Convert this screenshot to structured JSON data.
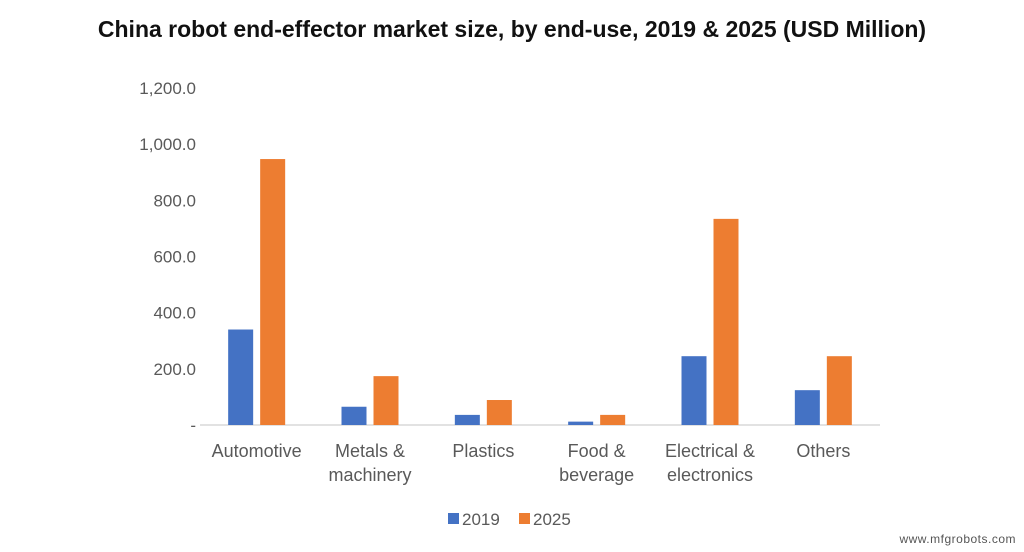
{
  "chart_data": {
    "type": "bar",
    "title": "China robot end-effector market size, by end-use, 2019 & 2025 (USD Million)",
    "xlabel": "",
    "ylabel": "",
    "categories": [
      [
        "Automotive"
      ],
      [
        "Metals &",
        "machinery"
      ],
      [
        "Plastics"
      ],
      [
        "Food &",
        "beverage"
      ],
      [
        "Electrical &",
        "electronics"
      ],
      [
        "Others"
      ]
    ],
    "series": [
      {
        "name": "2019",
        "color": "#4472C4",
        "values": [
          340,
          65,
          36,
          12,
          245,
          124
        ]
      },
      {
        "name": "2025",
        "color": "#ED7D31",
        "values": [
          947,
          174,
          89,
          36,
          734,
          245
        ]
      }
    ],
    "ylim": [
      0,
      1200
    ],
    "yticks": [
      0,
      200,
      400,
      600,
      800,
      1000,
      1200
    ],
    "ytick_labels": [
      "-",
      "200.0",
      "400.0",
      "600.0",
      "800.0",
      "1,000.0",
      "1,200.0"
    ],
    "grid": false,
    "legend": "bottom"
  },
  "watermark": "www.mfgrobots.com"
}
